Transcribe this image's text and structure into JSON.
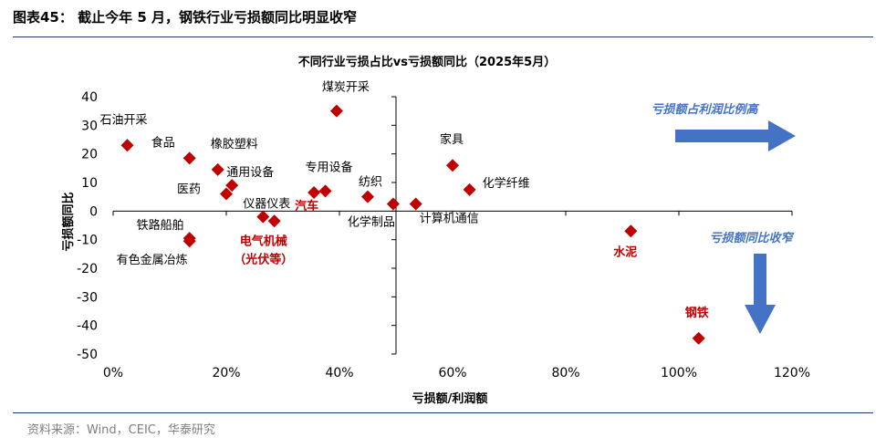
{
  "header": {
    "title": "图表45：  截止今年 5 月，钢铁行业亏损额同比明显收窄"
  },
  "source": "资料来源：Wind，CEIC，华泰研究",
  "colors": {
    "marker": "#c00000",
    "arrow": "#4472c4",
    "axis": "#000000",
    "rule": "#1f3864"
  },
  "chart_data": {
    "type": "scatter",
    "title": "不同行业亏损占比vs亏损额同比（2025年5月）",
    "xlabel": "亏损额/利润额",
    "ylabel": "亏损额同比",
    "xlim": [
      0,
      120
    ],
    "ylim": [
      -50,
      40
    ],
    "x_ticks": [
      "0%",
      "20%",
      "40%",
      "60%",
      "80%",
      "100%",
      "120%"
    ],
    "y_ticks": [
      "40",
      "30",
      "20",
      "10",
      "0",
      "-10",
      "-20",
      "-30",
      "-40",
      "-50"
    ],
    "grid": false,
    "quadrant_lines": {
      "x": 50,
      "y": 0
    },
    "points": [
      {
        "label": "石油开采",
        "x": 2.5,
        "y": 23,
        "highlight": false
      },
      {
        "label": "食品",
        "x": 13.5,
        "y": 18.5,
        "highlight": false
      },
      {
        "label": "橡胶塑料",
        "x": 18.5,
        "y": 14.5,
        "highlight": false
      },
      {
        "label": "医药",
        "x": 20,
        "y": 6,
        "highlight": false
      },
      {
        "label": "通用设备",
        "x": 21,
        "y": 9,
        "highlight": false
      },
      {
        "label": "仪器仪表",
        "x": 26.5,
        "y": -2,
        "highlight": false
      },
      {
        "label": "电气机械（光伏等）",
        "x": 28.5,
        "y": -3.5,
        "highlight": true
      },
      {
        "label": "汽车",
        "x": 35.5,
        "y": 6.5,
        "highlight": true
      },
      {
        "label": "专用设备",
        "x": 37.5,
        "y": 7,
        "highlight": false
      },
      {
        "label": "煤炭开采",
        "x": 39.5,
        "y": 35,
        "highlight": false
      },
      {
        "label": "纺织",
        "x": 45,
        "y": 5,
        "highlight": false
      },
      {
        "label": "化学制品",
        "x": 49.5,
        "y": 2.5,
        "highlight": false
      },
      {
        "label": "计算机通信",
        "x": 53.5,
        "y": 2.5,
        "highlight": false
      },
      {
        "label": "家具",
        "x": 60,
        "y": 16,
        "highlight": false
      },
      {
        "label": "化学纤维",
        "x": 63,
        "y": 7.5,
        "highlight": false
      },
      {
        "label": "铁路船舶",
        "x": 13.5,
        "y": -9.5,
        "highlight": false
      },
      {
        "label": "有色金属冶炼",
        "x": 13.5,
        "y": -10.5,
        "highlight": false
      },
      {
        "label": "水泥",
        "x": 91.5,
        "y": -7,
        "highlight": true
      },
      {
        "label": "钢铁",
        "x": 103.5,
        "y": -44.5,
        "highlight": true
      }
    ],
    "annotations": [
      {
        "text": "亏损额占利润比例高",
        "direction": "right"
      },
      {
        "text": "亏损额同比收窄",
        "direction": "down"
      }
    ]
  }
}
